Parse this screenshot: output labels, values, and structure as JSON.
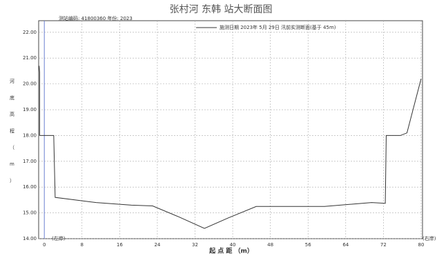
{
  "chart_data": {
    "type": "line",
    "title": "张村河 东韩 站大断面图",
    "subtitle": "测站编码: 41800360  年份: 2023",
    "x_label": "起 点 距 （m）",
    "y_label": "河 底 高 程 （ m ）",
    "left_bank": "(左岸)",
    "right_bank": "(右岸)",
    "xlim": [
      -1.2,
      80.3
    ],
    "ylim": [
      14,
      22.45
    ],
    "xticks": [
      0,
      8,
      16,
      24,
      32,
      40,
      48,
      56,
      64,
      72,
      80
    ],
    "yticks": [
      {
        "value": 14,
        "label": "14.00"
      },
      {
        "value": 15,
        "label": "15.00"
      },
      {
        "value": 16,
        "label": "16.00"
      },
      {
        "value": 17,
        "label": "17.00"
      },
      {
        "value": 18,
        "label": "18.00"
      },
      {
        "value": 19,
        "label": "19.00"
      },
      {
        "value": 20,
        "label": "20.00"
      },
      {
        "value": 21,
        "label": "21.00"
      },
      {
        "value": 22,
        "label": "22.00"
      }
    ],
    "grid": true,
    "series": [
      {
        "name": "施测日期 2023年 5月 29日  汛前实测断面(基于 45m)",
        "color": "#333333",
        "x": [
          -1.1,
          -1.0,
          -1.0,
          2.0,
          2.3,
          11,
          18.5,
          23,
          28.5,
          34,
          39,
          45,
          49,
          59.5,
          69.5,
          72.4,
          72.6,
          75.6,
          77,
          80
        ],
        "values": [
          20.7,
          20.45,
          18.0,
          18.0,
          15.6,
          15.4,
          15.3,
          15.27,
          14.85,
          14.4,
          14.8,
          15.25,
          15.25,
          15.25,
          15.4,
          15.37,
          18.0,
          18.0,
          18.1,
          20.2
        ]
      }
    ]
  }
}
